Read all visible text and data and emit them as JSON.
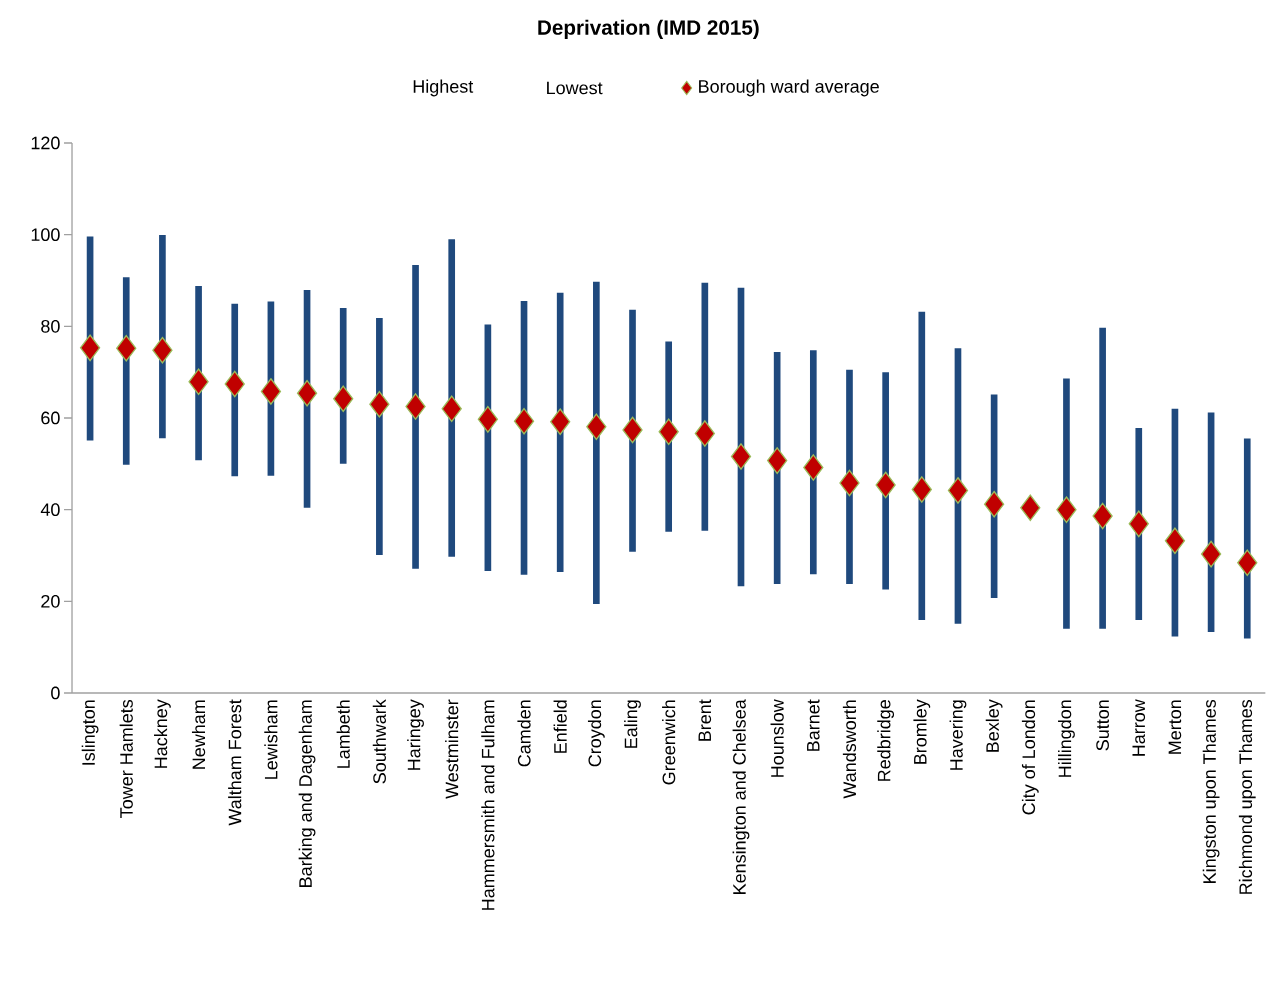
{
  "chart_data": {
    "type": "scatter",
    "title": "Deprivation (IMD 2015)",
    "categories": [
      "Islington",
      "Tower Hamlets",
      "Hackney",
      "Newham",
      "Waltham Forest",
      "Lewisham",
      "Barking and Dagenham",
      "Lambeth",
      "Southwark",
      "Haringey",
      "Westminster",
      "Hammersmith and Fulham",
      "Camden",
      "Enfield",
      "Croydon",
      "Ealing",
      "Greenwich",
      "Brent",
      "Kensington and Chelsea",
      "Hounslow",
      "Barnet",
      "Wandsworth",
      "Redbridge",
      "Bromley",
      "Havering",
      "Bexley",
      "City of London",
      "Hillingdon",
      "Sutton",
      "Harrow",
      "Merton",
      "Kingston upon Thames",
      "Richmond upon Thames"
    ],
    "series": [
      {
        "name": "Borough ward average",
        "marker": "diamond",
        "color": "#c00000",
        "values": [
          75.3,
          75.2,
          74.8,
          67.9,
          67.4,
          65.8,
          65.4,
          64.2,
          63.0,
          62.5,
          62.0,
          59.7,
          59.3,
          59.2,
          58.1,
          57.4,
          57.0,
          56.6,
          51.6,
          50.7,
          49.2,
          45.8,
          45.4,
          44.4,
          44.2,
          41.2,
          40.4,
          40.0,
          38.6,
          36.9,
          33.2,
          30.3,
          28.4
        ],
        "errors": [
          [
            55.1,
            99.6
          ],
          [
            49.8,
            90.7
          ],
          [
            55.6,
            99.9
          ],
          [
            50.8,
            88.8
          ],
          [
            47.3,
            84.9
          ],
          [
            47.4,
            85.4
          ],
          [
            40.4,
            87.9
          ],
          [
            50.0,
            84.0
          ],
          [
            30.1,
            81.8
          ],
          [
            27.1,
            93.4
          ],
          [
            29.7,
            99.0
          ],
          [
            26.6,
            80.4
          ],
          [
            25.8,
            85.5
          ],
          [
            26.4,
            87.3
          ],
          [
            19.4,
            89.7
          ],
          [
            30.8,
            83.6
          ],
          [
            35.2,
            76.7
          ],
          [
            35.4,
            89.5
          ],
          [
            23.3,
            88.4
          ],
          [
            23.8,
            74.4
          ],
          [
            25.9,
            74.8
          ],
          [
            23.8,
            70.5
          ],
          [
            22.6,
            70.0
          ],
          [
            15.9,
            83.2
          ],
          [
            15.1,
            75.2
          ],
          [
            20.7,
            65.1
          ],
          null,
          [
            14.0,
            68.6
          ],
          [
            14.0,
            79.7
          ],
          [
            15.9,
            57.8
          ],
          [
            12.3,
            62.0
          ],
          [
            13.3,
            61.2
          ],
          [
            11.9,
            55.5
          ]
        ]
      }
    ],
    "annotations": [
      "Highest",
      "Lowest"
    ],
    "ylim": [
      0,
      120
    ],
    "yticks": [
      0,
      20,
      40,
      60,
      80,
      100,
      120
    ],
    "legend": "top"
  }
}
